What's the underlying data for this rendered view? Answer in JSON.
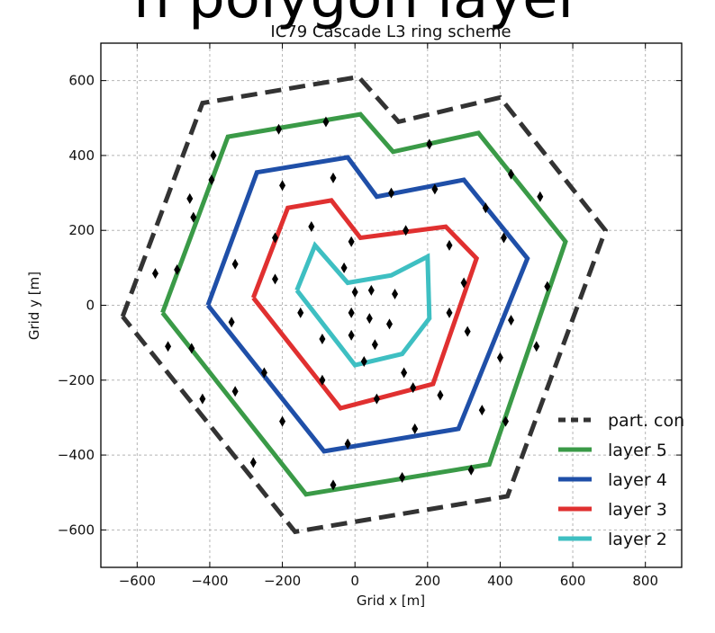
{
  "heading_fragment": "n polygon layer",
  "chart_data": {
    "type": "line",
    "title": "IC79 Cascade L3 ring scheme",
    "xlabel": "Grid x [m]",
    "ylabel": "Grid y [m]",
    "xlim": [
      -700,
      900
    ],
    "ylim": [
      -700,
      700
    ],
    "xticks": [
      -600,
      -400,
      -200,
      0,
      200,
      400,
      600,
      800
    ],
    "yticks": [
      -600,
      -400,
      -200,
      0,
      200,
      400,
      600
    ],
    "xtick_labels": [
      "−600",
      "−400",
      "−200",
      "0",
      "200",
      "400",
      "600",
      "800"
    ],
    "ytick_labels": [
      "−600",
      "−400",
      "−200",
      "0",
      "200",
      "400",
      "600"
    ],
    "grid": true,
    "legend_position": "lower right",
    "series": [
      {
        "name": "part. con",
        "color": "#333333",
        "style": "dashed",
        "points": [
          [
            -640,
            -30
          ],
          [
            -420,
            540
          ],
          [
            10,
            610
          ],
          [
            120,
            490
          ],
          [
            400,
            555
          ],
          [
            690,
            200
          ],
          [
            420,
            -510
          ],
          [
            -165,
            -605
          ],
          [
            -640,
            -30
          ]
        ]
      },
      {
        "name": "layer 5",
        "color": "#3a9a47",
        "style": "solid",
        "points": [
          [
            -530,
            -20
          ],
          [
            -350,
            450
          ],
          [
            15,
            510
          ],
          [
            105,
            410
          ],
          [
            340,
            460
          ],
          [
            580,
            170
          ],
          [
            370,
            -425
          ],
          [
            -135,
            -505
          ],
          [
            -530,
            -20
          ]
        ]
      },
      {
        "name": "layer 4",
        "color": "#1f4fa8",
        "style": "solid",
        "points": [
          [
            -405,
            0
          ],
          [
            -270,
            355
          ],
          [
            -20,
            395
          ],
          [
            60,
            290
          ],
          [
            300,
            335
          ],
          [
            475,
            125
          ],
          [
            285,
            -330
          ],
          [
            -85,
            -390
          ],
          [
            -405,
            0
          ]
        ]
      },
      {
        "name": "layer 3",
        "color": "#e03030",
        "style": "solid",
        "points": [
          [
            -280,
            20
          ],
          [
            -185,
            260
          ],
          [
            -65,
            280
          ],
          [
            15,
            180
          ],
          [
            250,
            210
          ],
          [
            335,
            125
          ],
          [
            215,
            -210
          ],
          [
            -40,
            -275
          ],
          [
            -280,
            20
          ]
        ]
      },
      {
        "name": "layer 2",
        "color": "#3ebfc2",
        "style": "solid",
        "points": [
          [
            -160,
            40
          ],
          [
            -110,
            160
          ],
          [
            -20,
            60
          ],
          [
            100,
            80
          ],
          [
            200,
            130
          ],
          [
            205,
            -35
          ],
          [
            130,
            -130
          ],
          [
            0,
            -160
          ],
          [
            -160,
            40
          ]
        ]
      }
    ],
    "strings": [
      [
        0,
        35
      ],
      [
        45,
        40
      ],
      [
        110,
        30
      ],
      [
        -10,
        -20
      ],
      [
        40,
        -35
      ],
      [
        95,
        -50
      ],
      [
        -10,
        -80
      ],
      [
        55,
        -105
      ],
      [
        -150,
        -20
      ],
      [
        -90,
        -90
      ],
      [
        -220,
        70
      ],
      [
        -30,
        100
      ],
      [
        25,
        -150
      ],
      [
        135,
        -180
      ],
      [
        160,
        -220
      ],
      [
        235,
        -240
      ],
      [
        260,
        -20
      ],
      [
        310,
        -70
      ],
      [
        300,
        60
      ],
      [
        260,
        160
      ],
      [
        140,
        200
      ],
      [
        -10,
        170
      ],
      [
        -120,
        210
      ],
      [
        -220,
        180
      ],
      [
        -330,
        110
      ],
      [
        -340,
        -45
      ],
      [
        -250,
        -180
      ],
      [
        -90,
        -200
      ],
      [
        60,
        -250
      ],
      [
        -200,
        320
      ],
      [
        -60,
        340
      ],
      [
        100,
        300
      ],
      [
        220,
        310
      ],
      [
        360,
        260
      ],
      [
        410,
        180
      ],
      [
        430,
        -40
      ],
      [
        400,
        -140
      ],
      [
        350,
        -280
      ],
      [
        165,
        -330
      ],
      [
        -20,
        -370
      ],
      [
        -200,
        -310
      ],
      [
        -330,
        -230
      ],
      [
        -450,
        -115
      ],
      [
        -490,
        95
      ],
      [
        -445,
        235
      ],
      [
        -395,
        335
      ],
      [
        -210,
        470
      ],
      [
        -80,
        490
      ],
      [
        205,
        430
      ],
      [
        430,
        350
      ],
      [
        510,
        290
      ],
      [
        530,
        50
      ],
      [
        500,
        -110
      ],
      [
        415,
        -310
      ],
      [
        320,
        -440
      ],
      [
        130,
        -460
      ],
      [
        -60,
        -480
      ],
      [
        -280,
        -420
      ],
      [
        -420,
        -250
      ],
      [
        -515,
        -110
      ],
      [
        -550,
        85
      ],
      [
        -455,
        285
      ],
      [
        -390,
        400
      ]
    ]
  }
}
